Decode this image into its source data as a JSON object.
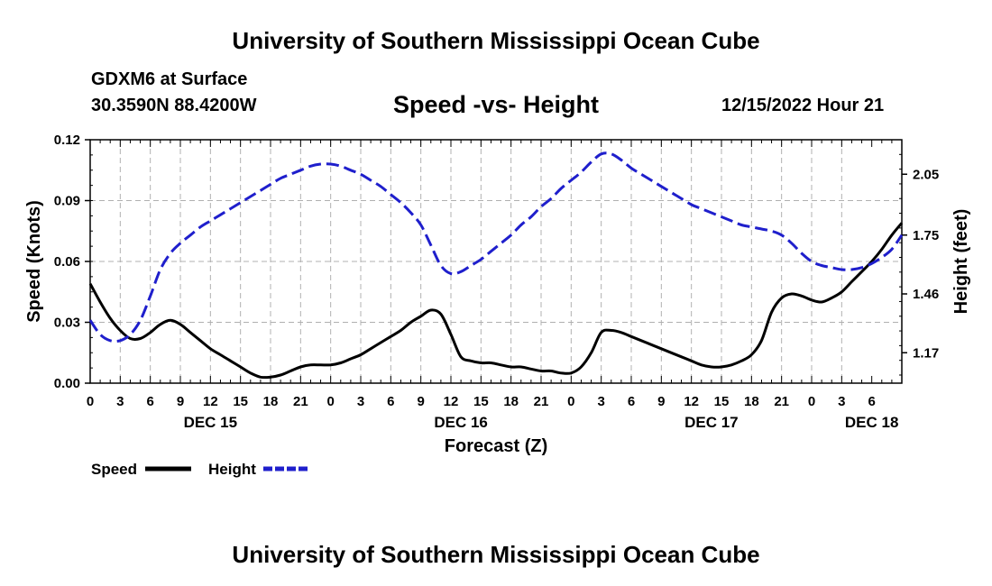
{
  "header": {
    "main_title": "University of Southern Mississippi Ocean Cube",
    "station": "GDXM6 at Surface",
    "coords": "30.3590N  88.4200W",
    "chart_title": "Speed -vs- Height",
    "datetime": "12/15/2022 Hour 21",
    "bottom_title": "University of Southern Mississippi Ocean Cube"
  },
  "legend": {
    "speed_label": "Speed",
    "height_label": "Height"
  },
  "colors": {
    "speed": "#000000",
    "height": "#1f1fcc",
    "grid": "#b0b0b0"
  },
  "chart_data": {
    "type": "line",
    "xlabel": "Forecast (Z)",
    "ylabel_left": "Speed (Knots)",
    "ylabel_right": "Height (feet)",
    "xlim": [
      0,
      81
    ],
    "ylim_left": [
      0,
      0.12
    ],
    "ylim_right": [
      1.02,
      2.22
    ],
    "x_tick_labels": [
      "0",
      "3",
      "6",
      "9",
      "12",
      "15",
      "18",
      "21",
      "0",
      "3",
      "6",
      "9",
      "12",
      "15",
      "18",
      "21",
      "0",
      "3",
      "6",
      "9",
      "12",
      "15",
      "18",
      "21",
      "0",
      "3",
      "6"
    ],
    "left_ticks": [
      {
        "value": 0.0,
        "label": "0.00"
      },
      {
        "value": 0.03,
        "label": "0.03"
      },
      {
        "value": 0.06,
        "label": "0.06"
      },
      {
        "value": 0.09,
        "label": "0.09"
      },
      {
        "value": 0.12,
        "label": "0.12"
      }
    ],
    "right_ticks": [
      {
        "value": 1.17,
        "label": "1.17"
      },
      {
        "value": 1.46,
        "label": "1.46"
      },
      {
        "value": 1.75,
        "label": "1.75"
      },
      {
        "value": 2.05,
        "label": "2.05"
      }
    ],
    "day_labels": [
      {
        "x": 12,
        "label": "DEC 15"
      },
      {
        "x": 37,
        "label": "DEC 16"
      },
      {
        "x": 62,
        "label": "DEC 17"
      },
      {
        "x": 78,
        "label": "DEC 18"
      }
    ],
    "grid": true,
    "legend_position": "bottom-left",
    "series": [
      {
        "name": "Speed",
        "axis": "left",
        "style": "solid",
        "x": [
          0,
          1,
          2,
          3,
          4,
          5,
          6,
          7,
          8,
          9,
          10,
          11,
          12,
          13,
          14,
          15,
          16,
          17,
          18,
          19,
          20,
          21,
          22,
          23,
          24,
          25,
          26,
          27,
          28,
          29,
          30,
          31,
          32,
          33,
          34,
          35,
          36,
          37,
          38,
          39,
          40,
          41,
          42,
          43,
          44,
          45,
          46,
          47,
          48,
          49,
          50,
          51,
          52,
          53,
          54,
          55,
          56,
          57,
          58,
          59,
          60,
          61,
          62,
          63,
          64,
          65,
          66,
          67,
          68,
          69,
          70,
          71,
          72,
          73,
          74,
          75,
          76,
          77,
          78,
          79,
          80,
          81
        ],
        "values": [
          0.049,
          0.04,
          0.032,
          0.026,
          0.022,
          0.022,
          0.025,
          0.029,
          0.031,
          0.029,
          0.025,
          0.021,
          0.017,
          0.014,
          0.011,
          0.008,
          0.005,
          0.003,
          0.003,
          0.004,
          0.006,
          0.008,
          0.009,
          0.009,
          0.009,
          0.01,
          0.012,
          0.014,
          0.017,
          0.02,
          0.023,
          0.026,
          0.03,
          0.033,
          0.036,
          0.034,
          0.024,
          0.013,
          0.011,
          0.01,
          0.01,
          0.009,
          0.008,
          0.008,
          0.007,
          0.006,
          0.006,
          0.005,
          0.005,
          0.008,
          0.015,
          0.025,
          0.026,
          0.025,
          0.023,
          0.021,
          0.019,
          0.017,
          0.015,
          0.013,
          0.011,
          0.009,
          0.008,
          0.008,
          0.009,
          0.011,
          0.014,
          0.021,
          0.035,
          0.042,
          0.044,
          0.043,
          0.041,
          0.04,
          0.042,
          0.045,
          0.05,
          0.055,
          0.06,
          0.066,
          0.073,
          0.079
        ]
      },
      {
        "name": "Height",
        "axis": "right",
        "style": "dashed",
        "x": [
          0,
          1,
          2,
          3,
          4,
          5,
          6,
          7,
          8,
          9,
          10,
          11,
          12,
          13,
          14,
          15,
          16,
          17,
          18,
          19,
          20,
          21,
          22,
          23,
          24,
          25,
          26,
          27,
          28,
          29,
          30,
          31,
          32,
          33,
          34,
          35,
          36,
          37,
          38,
          39,
          40,
          41,
          42,
          43,
          44,
          45,
          46,
          47,
          48,
          49,
          50,
          51,
          52,
          53,
          54,
          55,
          56,
          57,
          58,
          59,
          60,
          61,
          62,
          63,
          64,
          65,
          66,
          67,
          68,
          69,
          70,
          71,
          72,
          73,
          74,
          75,
          76,
          77,
          78,
          79,
          80,
          81
        ],
        "values": [
          1.33,
          1.26,
          1.23,
          1.23,
          1.26,
          1.33,
          1.45,
          1.58,
          1.66,
          1.71,
          1.75,
          1.79,
          1.82,
          1.85,
          1.88,
          1.91,
          1.94,
          1.97,
          2.0,
          2.03,
          2.05,
          2.07,
          2.09,
          2.1,
          2.1,
          2.09,
          2.07,
          2.05,
          2.02,
          1.99,
          1.95,
          1.91,
          1.86,
          1.8,
          1.7,
          1.6,
          1.56,
          1.57,
          1.6,
          1.63,
          1.67,
          1.71,
          1.75,
          1.8,
          1.84,
          1.89,
          1.93,
          1.98,
          2.02,
          2.06,
          2.11,
          2.15,
          2.15,
          2.12,
          2.08,
          2.05,
          2.02,
          1.99,
          1.96,
          1.93,
          1.9,
          1.88,
          1.86,
          1.84,
          1.82,
          1.8,
          1.79,
          1.78,
          1.77,
          1.75,
          1.71,
          1.66,
          1.62,
          1.6,
          1.59,
          1.58,
          1.58,
          1.59,
          1.61,
          1.64,
          1.68,
          1.75
        ]
      }
    ]
  }
}
